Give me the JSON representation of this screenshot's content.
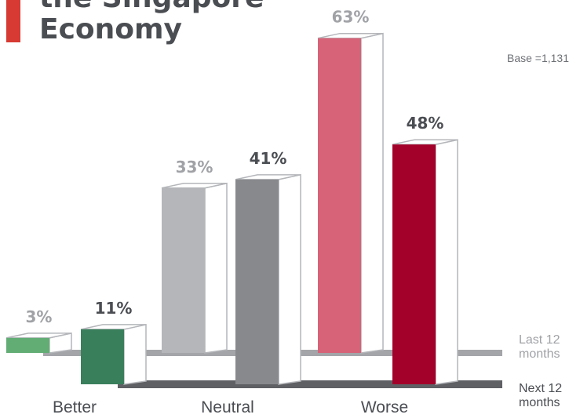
{
  "title": {
    "line1": "the Singapore",
    "line2": "Economy",
    "accent_color": "#d63a32"
  },
  "base_note": "Base =1,131",
  "chart_data": {
    "type": "bar",
    "categories": [
      "Better",
      "Neutral",
      "Worse"
    ],
    "series": [
      {
        "name": "Last 12 months",
        "values": [
          3,
          33,
          63
        ],
        "colors": [
          "#62ad74",
          "#b4b6ba",
          "#d66377"
        ],
        "label_color": "#a0a2a6",
        "labels": [
          "3%",
          "33%",
          "63%"
        ]
      },
      {
        "name": "Next 12 months",
        "values": [
          11,
          41,
          48
        ],
        "colors": [
          "#3a7f5c",
          "#88898d",
          "#a3002a"
        ],
        "label_color": "#4a4d52",
        "labels": [
          "11%",
          "41%",
          "48%"
        ]
      }
    ],
    "ylim": [
      0,
      70
    ],
    "legend": {
      "placement": "right",
      "colors": [
        "#a0a2a6",
        "#4a4d52"
      ]
    },
    "xlabel": "",
    "ylabel": ""
  }
}
